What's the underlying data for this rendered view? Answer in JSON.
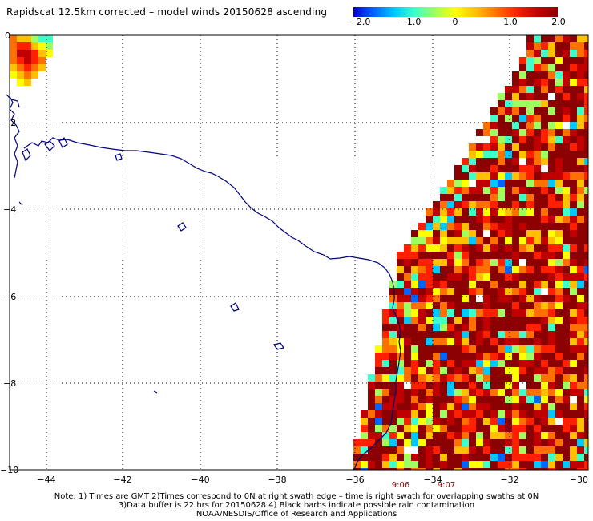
{
  "title": "Rapidscat 12.5km corrected – model winds 20150628 ascending",
  "colorbar": {
    "ticks": [
      "−2.0",
      "−1.0",
      "0",
      "1.0",
      "2.0"
    ],
    "colors": [
      "#0000c8",
      "#0064ff",
      "#00c8ff",
      "#40ffc8",
      "#a0ff60",
      "#ffff00",
      "#ffc000",
      "#ff7000",
      "#ff2000",
      "#c00000",
      "#8b0000"
    ]
  },
  "map": {
    "x_ticks": [
      "−44",
      "−42",
      "−40",
      "−38",
      "−36",
      "−34",
      "−32",
      "−30"
    ],
    "y_ticks": [
      "0",
      "−2",
      "−4",
      "−6",
      "−8",
      "−10"
    ],
    "lon_range": [
      -44.8,
      -30
    ],
    "lat_range": [
      -10,
      0
    ],
    "coast_color": "#000080",
    "grid": true,
    "swath_times": [
      "9:06",
      "9:07"
    ]
  },
  "note": {
    "line1": "Note: 1) Times are GMT 2)Times correspond to 0N at right swath edge – time is right swath for overlapping swaths at 0N",
    "line2": "3)Data buffer is 22 hrs for 20150628 4) Black barbs indicate possible rain contamination",
    "line3": "NOAA/NESDIS/Office of Research and Applications"
  }
}
